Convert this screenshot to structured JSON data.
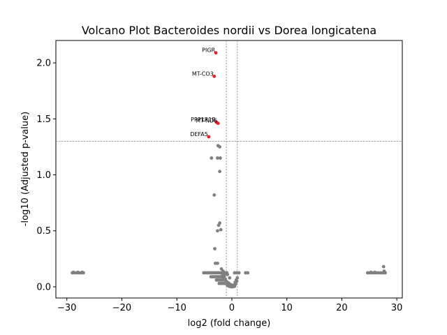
{
  "chart_data": {
    "type": "scatter",
    "title": "Volcano Plot Bacteroides nordii vs Dorea longicatena",
    "xlabel": "log2 (fold change)",
    "ylabel": "-log10 (Adjusted p-value)",
    "xlim": [
      -32,
      31
    ],
    "ylim": [
      -0.1,
      2.2
    ],
    "xticks": [
      -30,
      -20,
      -10,
      0,
      10,
      20,
      30
    ],
    "xtick_labels": [
      "−30",
      "−20",
      "−10",
      "0",
      "10",
      "20",
      "30"
    ],
    "yticks": [
      0.0,
      0.5,
      1.0,
      1.5,
      2.0
    ],
    "ytick_labels": [
      "0.0",
      "0.5",
      "1.0",
      "1.5",
      "2.0"
    ],
    "grid": false,
    "threshold_lines": {
      "horizontal_y": 1.3,
      "vertical_x": [
        -1,
        1
      ],
      "color": "#808080",
      "style": "dashed"
    },
    "colors": {
      "significant": "#e8202a",
      "not_significant": "#808080",
      "threshold": "#808080"
    },
    "significant_points": [
      {
        "label": "PIGR",
        "x": -2.9,
        "y": 2.09
      },
      {
        "label": "MT-CO3",
        "x": -3.2,
        "y": 1.88
      },
      {
        "label": "PPP1R1B",
        "x": -2.8,
        "y": 1.47
      },
      {
        "label": "MT-ND6",
        "x": -2.5,
        "y": 1.46
      },
      {
        "label": "DEFA5",
        "x": -4.2,
        "y": 1.34
      }
    ],
    "series": [
      {
        "values": [
          [
            -29.0,
            0.125
          ],
          [
            -28.6,
            0.125
          ],
          [
            -28.2,
            0.125
          ],
          [
            -27.8,
            0.125
          ],
          [
            -27.4,
            0.125
          ],
          [
            -27.0,
            0.125
          ],
          [
            -28.8,
            0.13
          ],
          [
            -28.0,
            0.13
          ],
          [
            -27.2,
            0.13
          ],
          [
            24.7,
            0.125
          ],
          [
            25.1,
            0.125
          ],
          [
            25.5,
            0.125
          ],
          [
            25.9,
            0.125
          ],
          [
            26.3,
            0.125
          ],
          [
            26.7,
            0.125
          ],
          [
            27.1,
            0.125
          ],
          [
            27.5,
            0.125
          ],
          [
            27.9,
            0.125
          ],
          [
            27.6,
            0.18
          ],
          [
            27.7,
            0.14
          ],
          [
            26.0,
            0.13
          ],
          [
            25.3,
            0.13
          ],
          [
            -2.5,
            1.26
          ],
          [
            -2.2,
            1.25
          ],
          [
            -3.7,
            1.15
          ],
          [
            -2.6,
            1.15
          ],
          [
            -2.1,
            1.15
          ],
          [
            -2.2,
            1.03
          ],
          [
            -3.2,
            0.82
          ],
          [
            -2.2,
            0.57
          ],
          [
            -2.4,
            0.55
          ],
          [
            -2.0,
            0.51
          ],
          [
            -2.6,
            0.5
          ],
          [
            -3.1,
            0.34
          ],
          [
            -3.0,
            0.21
          ],
          [
            -2.6,
            0.21
          ],
          [
            -5.1,
            0.125
          ],
          [
            -4.8,
            0.125
          ],
          [
            -4.5,
            0.125
          ],
          [
            -4.2,
            0.125
          ],
          [
            -3.9,
            0.125
          ],
          [
            -3.6,
            0.125
          ],
          [
            -3.3,
            0.125
          ],
          [
            -3.0,
            0.125
          ],
          [
            -2.7,
            0.125
          ],
          [
            -2.4,
            0.125
          ],
          [
            -2.1,
            0.125
          ],
          [
            -1.8,
            0.125
          ],
          [
            -1.5,
            0.125
          ],
          [
            -1.2,
            0.125
          ],
          [
            -0.9,
            0.125
          ],
          [
            -3.8,
            0.09
          ],
          [
            -3.5,
            0.09
          ],
          [
            -3.2,
            0.09
          ],
          [
            -2.9,
            0.09
          ],
          [
            -2.6,
            0.09
          ],
          [
            -2.3,
            0.09
          ],
          [
            -2.0,
            0.09
          ],
          [
            -1.7,
            0.09
          ],
          [
            -1.4,
            0.09
          ],
          [
            -2.8,
            0.06
          ],
          [
            -2.5,
            0.06
          ],
          [
            -2.2,
            0.06
          ],
          [
            -1.9,
            0.06
          ],
          [
            -1.6,
            0.06
          ],
          [
            -1.3,
            0.06
          ],
          [
            -2.3,
            0.03
          ],
          [
            -2.0,
            0.03
          ],
          [
            -1.7,
            0.03
          ],
          [
            -1.4,
            0.03
          ],
          [
            -1.7,
            0.115
          ],
          [
            -1.4,
            0.105
          ],
          [
            -1.6,
            0.085
          ],
          [
            -1.2,
            0.07
          ],
          [
            -1.0,
            0.05
          ],
          [
            -0.8,
            0.04
          ],
          [
            -0.6,
            0.035
          ],
          [
            -0.45,
            0.025
          ],
          [
            -0.3,
            0.015
          ],
          [
            -0.9,
            0.02
          ],
          [
            -0.7,
            0.01
          ],
          [
            -0.5,
            0.005
          ],
          [
            -0.3,
            0.002
          ],
          [
            -0.1,
            0.0
          ],
          [
            0.1,
            0.0
          ],
          [
            0.3,
            0.002
          ],
          [
            0.5,
            0.005
          ],
          [
            -0.2,
            0.02
          ],
          [
            0.0,
            0.01
          ],
          [
            0.2,
            0.015
          ],
          [
            0.4,
            0.01
          ],
          [
            0.6,
            0.02
          ],
          [
            0.6,
            0.04
          ],
          [
            0.8,
            0.06
          ],
          [
            1.0,
            0.08
          ],
          [
            0.9,
            0.05
          ],
          [
            0.7,
            0.03
          ],
          [
            0.5,
            0.125
          ],
          [
            0.9,
            0.125
          ],
          [
            1.3,
            0.125
          ],
          [
            2.5,
            0.125
          ],
          [
            2.9,
            0.125
          ],
          [
            -1.9,
            0.16
          ],
          [
            -1.6,
            0.14
          ],
          [
            -0.4,
            0.08
          ],
          [
            -0.8,
            0.11
          ]
        ]
      }
    ]
  }
}
